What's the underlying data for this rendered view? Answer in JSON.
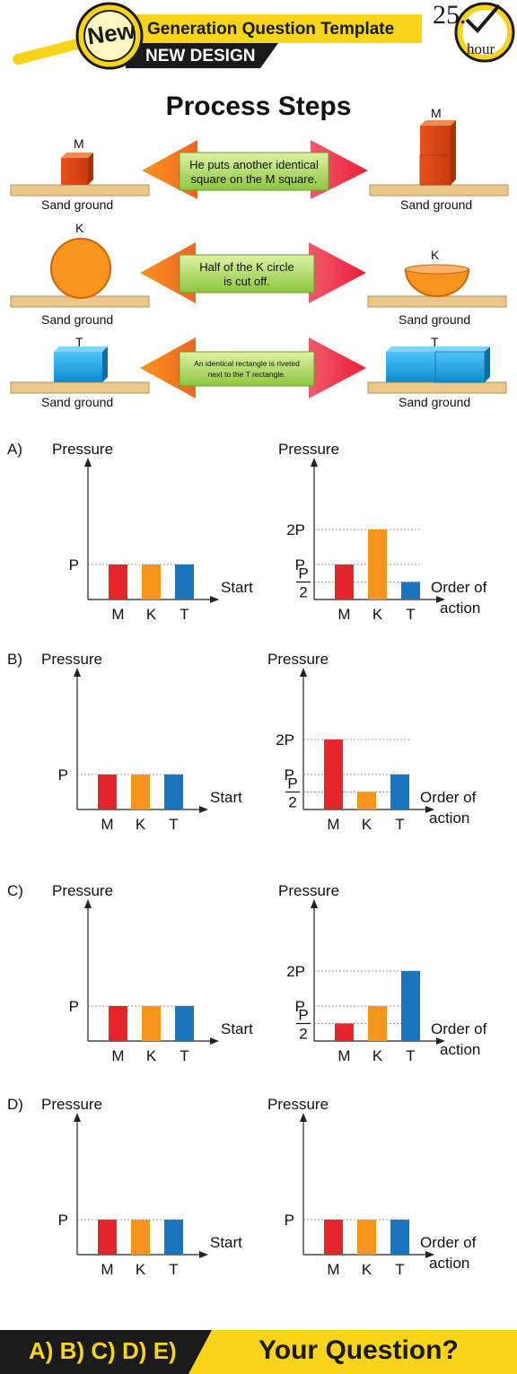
{
  "header": {
    "badge": "New",
    "title": "Generation Question Template",
    "subtitle": "NEW DESIGN",
    "timer_value": "25.",
    "timer_unit": "hour"
  },
  "process": {
    "title": "Process Steps",
    "ground_label": "Sand ground",
    "rows": [
      {
        "object": "M",
        "caption_line1": "He puts another identical",
        "caption_line2": "square on the M square."
      },
      {
        "object": "K",
        "caption_line1": "Half of the K circle",
        "caption_line2": "is cut off."
      },
      {
        "object": "T",
        "caption_line1": "An identical rectangle is riveted",
        "caption_line2": "next to the T rectangle."
      }
    ]
  },
  "colors": {
    "M": "#e3262b",
    "K": "#f7941d",
    "T": "#1b75bc"
  },
  "chart_data": [
    {
      "option": "A)",
      "panel": "start",
      "type": "bar",
      "ylabel": "Pressure",
      "xlabel": "Start",
      "categories": [
        "M",
        "K",
        "T"
      ],
      "values": [
        1,
        1,
        1
      ],
      "ytick_labels": [
        "P"
      ],
      "ytick_values": [
        1
      ],
      "unit": "P"
    },
    {
      "option": "A)",
      "panel": "after",
      "type": "bar",
      "ylabel": "Pressure",
      "xlabel_line1": "Order of",
      "xlabel_line2": "action",
      "categories": [
        "M",
        "K",
        "T"
      ],
      "values": [
        1,
        2,
        0.5
      ],
      "ytick_labels": [
        "2P",
        "P",
        "P/2"
      ],
      "ytick_values": [
        2,
        1,
        0.5
      ],
      "unit": "P"
    },
    {
      "option": "B)",
      "panel": "start",
      "type": "bar",
      "ylabel": "Pressure",
      "xlabel": "Start",
      "categories": [
        "M",
        "K",
        "T"
      ],
      "values": [
        1,
        1,
        1
      ],
      "ytick_labels": [
        "P"
      ],
      "ytick_values": [
        1
      ],
      "unit": "P"
    },
    {
      "option": "B)",
      "panel": "after",
      "type": "bar",
      "ylabel": "Pressure",
      "xlabel_line1": "Order of",
      "xlabel_line2": "action",
      "categories": [
        "M",
        "K",
        "T"
      ],
      "values": [
        2,
        0.5,
        1
      ],
      "ytick_labels": [
        "2P",
        "P",
        "P/2"
      ],
      "ytick_values": [
        2,
        1,
        0.5
      ],
      "unit": "P"
    },
    {
      "option": "C)",
      "panel": "start",
      "type": "bar",
      "ylabel": "Pressure",
      "xlabel": "Start",
      "categories": [
        "M",
        "K",
        "T"
      ],
      "values": [
        1,
        1,
        1
      ],
      "ytick_labels": [
        "P"
      ],
      "ytick_values": [
        1
      ],
      "unit": "P"
    },
    {
      "option": "C)",
      "panel": "after",
      "type": "bar",
      "ylabel": "Pressure",
      "xlabel_line1": "Order of",
      "xlabel_line2": "action",
      "categories": [
        "M",
        "K",
        "T"
      ],
      "values": [
        0.5,
        1,
        2
      ],
      "ytick_labels": [
        "2P",
        "P",
        "P/2"
      ],
      "ytick_values": [
        2,
        1,
        0.5
      ],
      "unit": "P"
    },
    {
      "option": "D)",
      "panel": "start",
      "type": "bar",
      "ylabel": "Pressure",
      "xlabel": "Start",
      "categories": [
        "M",
        "K",
        "T"
      ],
      "values": [
        1,
        1,
        1
      ],
      "ytick_labels": [
        "P"
      ],
      "ytick_values": [
        1
      ],
      "unit": "P"
    },
    {
      "option": "D)",
      "panel": "after",
      "type": "bar",
      "ylabel": "Pressure",
      "xlabel_line1": "Order of",
      "xlabel_line2": "action",
      "categories": [
        "M",
        "K",
        "T"
      ],
      "values": [
        1,
        1,
        1
      ],
      "ytick_labels": [
        "P"
      ],
      "ytick_values": [
        1
      ],
      "unit": "P"
    }
  ],
  "footer": {
    "choices": [
      "A)",
      "B)",
      "C)",
      "D)",
      "E)"
    ],
    "question": "Your Question?"
  }
}
